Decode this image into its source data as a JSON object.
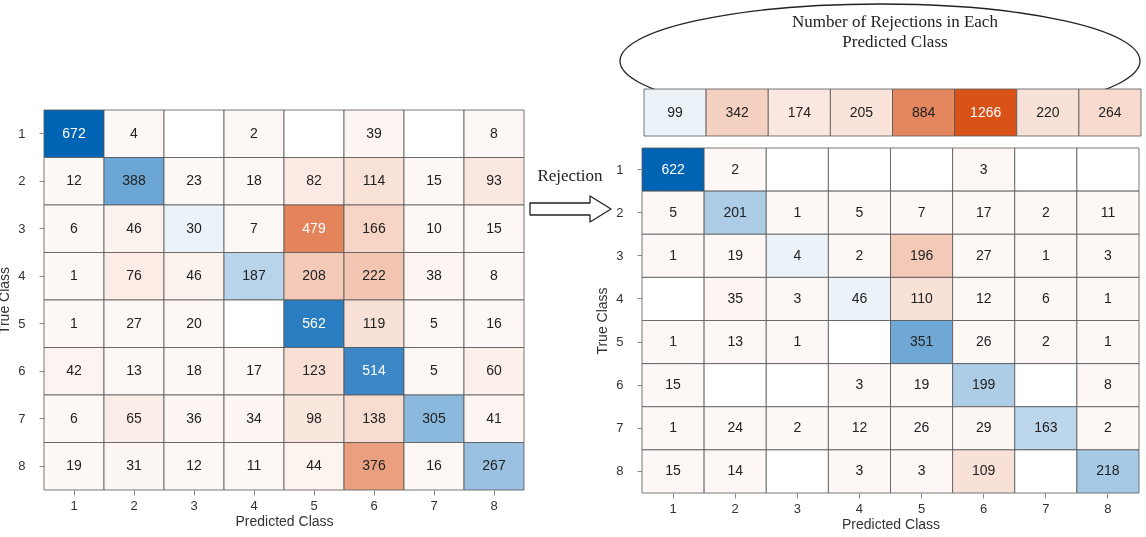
{
  "chart_data": [
    {
      "type": "heatmap",
      "xlabel": "Predicted Class",
      "ylabel": "True Class",
      "data_labels": true,
      "annotations": [
        "Rejection"
      ],
      "categories": [
        "1",
        "2",
        "3",
        "4",
        "5",
        "6",
        "7",
        "8"
      ],
      "y_categories": [
        "1",
        "2",
        "3",
        "4",
        "5",
        "6",
        "7",
        "8"
      ],
      "cells": [
        [
          672,
          4,
          null,
          2,
          null,
          39,
          null,
          8
        ],
        [
          12,
          388,
          23,
          18,
          82,
          114,
          15,
          93
        ],
        [
          6,
          46,
          30,
          7,
          479,
          166,
          10,
          15
        ],
        [
          1,
          76,
          46,
          187,
          208,
          222,
          38,
          8
        ],
        [
          1,
          27,
          20,
          null,
          562,
          119,
          5,
          16
        ],
        [
          42,
          13,
          18,
          17,
          123,
          514,
          5,
          60
        ],
        [
          6,
          65,
          36,
          34,
          98,
          138,
          305,
          41
        ],
        [
          19,
          31,
          12,
          11,
          44,
          376,
          16,
          267
        ]
      ]
    },
    {
      "type": "heatmap",
      "data_labels": true,
      "annotations": [
        "Number of Rejections in Each Predicted Class"
      ],
      "categories": [
        null,
        null,
        null,
        null,
        null,
        null,
        null,
        null
      ],
      "y_categories": [
        null
      ],
      "cells": [
        [
          99,
          342,
          174,
          205,
          884,
          1266,
          220,
          264
        ]
      ]
    },
    {
      "type": "heatmap",
      "xlabel": "Predicted Class",
      "ylabel": "True Class",
      "data_labels": true,
      "categories": [
        "1",
        "2",
        "3",
        "4",
        "5",
        "6",
        "7",
        "8"
      ],
      "y_categories": [
        "1",
        "2",
        "3",
        "4",
        "5",
        "6",
        "7",
        "8"
      ],
      "cells": [
        [
          622,
          2,
          null,
          null,
          null,
          3,
          null,
          null
        ],
        [
          5,
          201,
          1,
          5,
          7,
          17,
          2,
          11
        ],
        [
          1,
          19,
          4,
          2,
          196,
          27,
          1,
          3
        ],
        [
          null,
          35,
          3,
          46,
          110,
          12,
          6,
          1
        ],
        [
          1,
          13,
          1,
          null,
          351,
          26,
          2,
          1
        ],
        [
          15,
          null,
          null,
          3,
          19,
          199,
          null,
          8
        ],
        [
          1,
          24,
          2,
          12,
          26,
          29,
          163,
          2
        ],
        [
          15,
          14,
          null,
          3,
          3,
          109,
          null,
          218
        ]
      ]
    }
  ]
}
